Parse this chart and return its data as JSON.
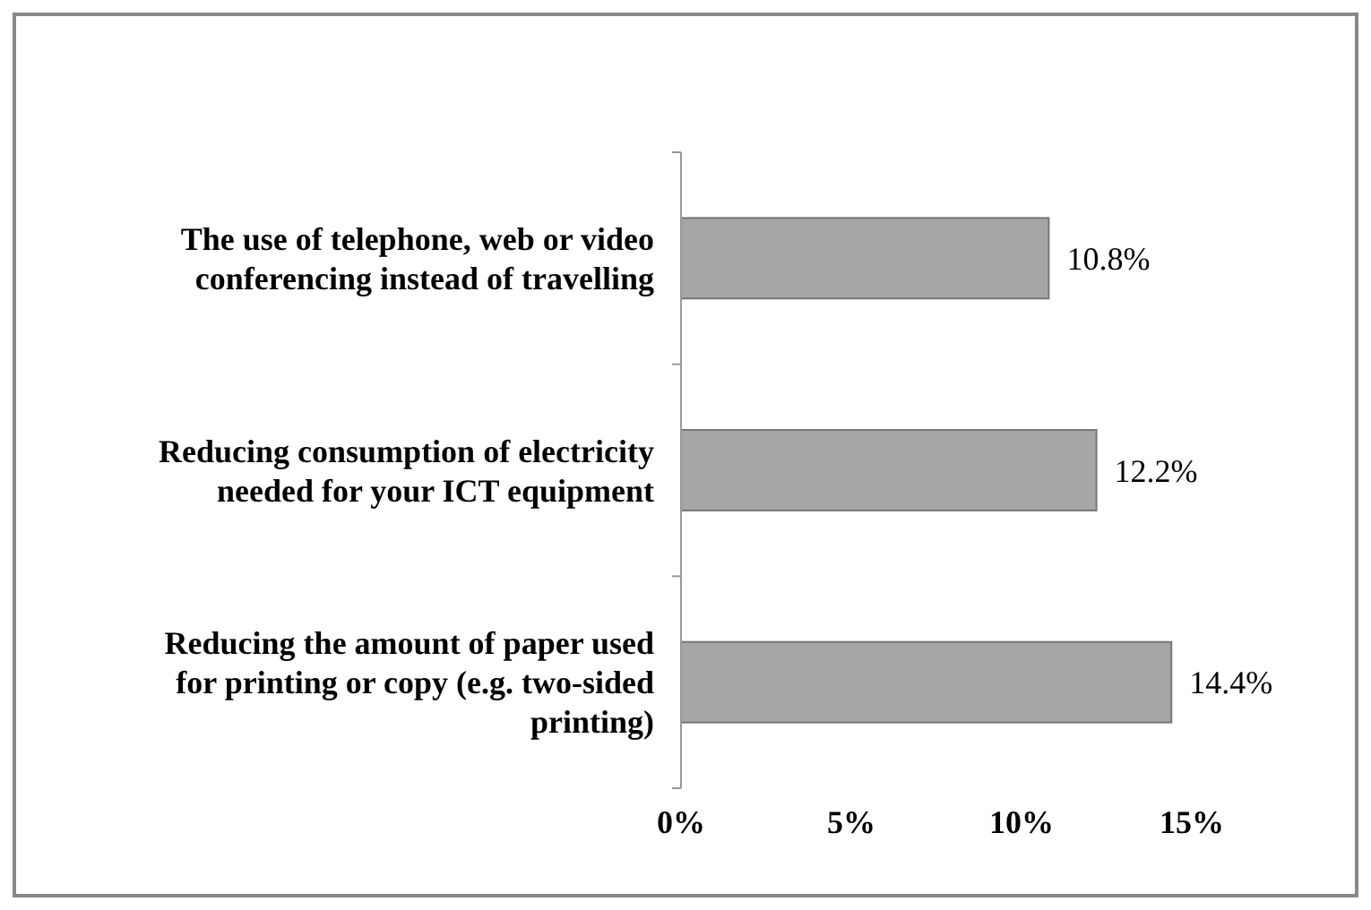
{
  "chart_data": {
    "type": "bar",
    "orientation": "horizontal",
    "categories": [
      "The use of telephone, web or video conferencing instead of travelling",
      "Reducing consumption of electricity needed for your ICT equipment",
      "Reducing the amount of paper used for printing or copy (e.g. two-sided printing)"
    ],
    "values": [
      10.8,
      12.2,
      14.4
    ],
    "color": "#a6a6a6",
    "value_labels": [
      "10.8%",
      "12.2%",
      "14.4%"
    ],
    "xlim": [
      0,
      15
    ],
    "xticks": [
      {
        "value": 0,
        "label": "0%"
      },
      {
        "value": 5,
        "label": "5%"
      },
      {
        "value": 10,
        "label": "10%"
      },
      {
        "value": 15,
        "label": "15%"
      }
    ],
    "grid": false
  }
}
